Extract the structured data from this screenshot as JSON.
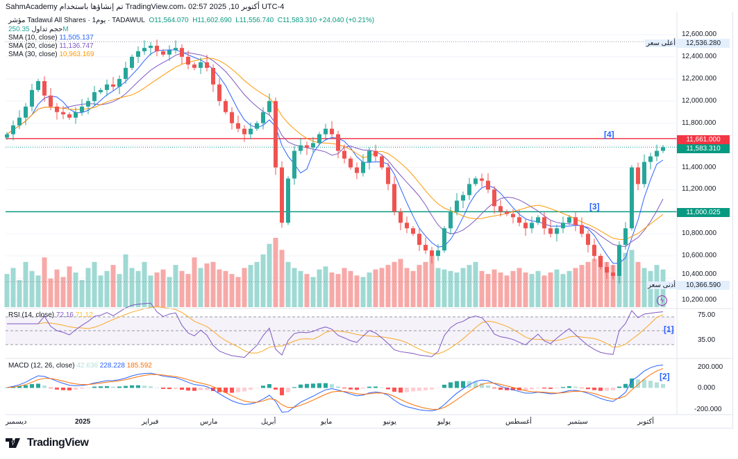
{
  "header": {
    "caption": "SahmAcademy تم إنشاؤها باستخدام TradingView.com، 02:57 2025 ,10 أكتوبر UTC-4"
  },
  "legend": {
    "symbol": "مؤشر Tadawul All Shares · يوم1 · TADAWUL",
    "o": "O11,564.070",
    "h": "H11,602.690",
    "l": "L11,556.740",
    "c": "C11,583.310",
    "chg": "+24.040 (+0.21%)",
    "vol_label": "حجم تداول",
    "vol_value": "250.35M",
    "sma10_label": "SMA (10, close)",
    "sma10_value": "11,505.137",
    "sma20_label": "SMA (20, close)",
    "sma20_value": "11,136.747",
    "sma30_label": "SMA (30, close)",
    "sma30_value": "10,963.169"
  },
  "price_axis": [
    "12,600.000",
    "12,400.000",
    "12,200.000",
    "12,000.000",
    "11,800.000",
    "11,400.000",
    "11,200.000",
    "10,800.000",
    "10,600.000",
    "10,400.000",
    "10,200.000"
  ],
  "tags": {
    "high_label": "أعلى سعر",
    "high_value": "12,536.280",
    "low_label": "أدنى سعر",
    "low_value": "10,366.590",
    "resistance": "11,661.000",
    "last": "11,583.310",
    "support": "11,000.025"
  },
  "rsi": {
    "label": "RSI (14, close)",
    "value": "72.16",
    "ma": "71.12",
    "axis_top": "75.00",
    "axis_bottom": "35.00"
  },
  "macd": {
    "label": "MACD (12, 26, close)",
    "hist": "42.636",
    "macd": "228.228",
    "signal": "185.592",
    "axis": [
      "200.000",
      "0.000",
      "-200.000"
    ]
  },
  "annotations": [
    "[1]",
    "[2]",
    "[3]",
    "[4]"
  ],
  "time_axis": [
    "ديسمبر",
    "2025",
    "فبراير",
    "مارس",
    "أبريل",
    "مايو",
    "يونيو",
    "يوليو",
    "أغسطس",
    "سبتمبر",
    "أكتوبر"
  ],
  "logo": "TradingView",
  "colors": {
    "up": "#26a69a",
    "down": "#ef5350",
    "sma10": "#2962ff",
    "sma20": "#7e57c2",
    "sma30": "#ff9800",
    "rsi": "#7e57c2",
    "rsi_ma": "#fbc02d"
  },
  "chart_data": {
    "type": "candlestick",
    "title": "Tadawul All Shares (TASI) daily",
    "y_range": [
      10200,
      12600
    ],
    "levels": {
      "resistance": 11661,
      "support": 11000.025,
      "high": 12536.28,
      "low": 10366.59
    },
    "closes": [
      11700,
      11780,
      11850,
      11950,
      12100,
      12180,
      12050,
      11950,
      11900,
      11880,
      11850,
      11900,
      11950,
      12000,
      12080,
      12100,
      12150,
      12130,
      12200,
      12300,
      12400,
      12450,
      12480,
      12500,
      12450,
      12420,
      12460,
      12480,
      12400,
      12330,
      12300,
      12350,
      12300,
      12150,
      12000,
      11900,
      11800,
      11750,
      11700,
      11750,
      11800,
      11900,
      12000,
      11400,
      10900,
      11300,
      11550,
      11600,
      11580,
      11620,
      11700,
      11750,
      11700,
      11550,
      11480,
      11400,
      11350,
      11450,
      11550,
      11500,
      11400,
      11250,
      11000,
      10900,
      10850,
      10800,
      10700,
      10650,
      10600,
      10650,
      10850,
      11000,
      11100,
      11150,
      11250,
      11300,
      11280,
      11200,
      11050,
      11000,
      10980,
      10950,
      10900,
      10850,
      10900,
      10950,
      10850,
      10800,
      10850,
      10900,
      10950,
      10880,
      10800,
      10700,
      10600,
      10500,
      10450,
      10420,
      10700,
      10850,
      11400,
      11250,
      11450,
      11500,
      11550,
      11583
    ],
    "volumes_m": [
      220,
      260,
      180,
      300,
      240,
      210,
      330,
      190,
      250,
      200,
      270,
      230,
      180,
      260,
      300,
      210,
      240,
      280,
      220,
      350,
      260,
      240,
      300,
      210,
      230,
      250,
      200,
      280,
      240,
      220,
      330,
      260,
      290,
      300,
      250,
      240,
      220,
      200,
      260,
      280,
      300,
      350,
      420,
      460,
      380,
      300,
      260,
      240,
      220,
      200,
      250,
      270,
      230,
      220,
      260,
      240,
      210,
      200,
      230,
      250,
      260,
      280,
      300,
      320,
      260,
      240,
      280,
      300,
      340,
      260,
      250,
      240,
      230,
      260,
      280,
      300,
      240,
      220,
      250,
      230,
      210,
      240,
      260,
      230,
      220,
      240,
      210,
      230,
      250,
      220,
      240,
      260,
      280,
      300,
      320,
      340,
      300,
      280,
      320,
      360,
      380,
      300,
      260,
      240,
      280,
      250
    ]
  }
}
